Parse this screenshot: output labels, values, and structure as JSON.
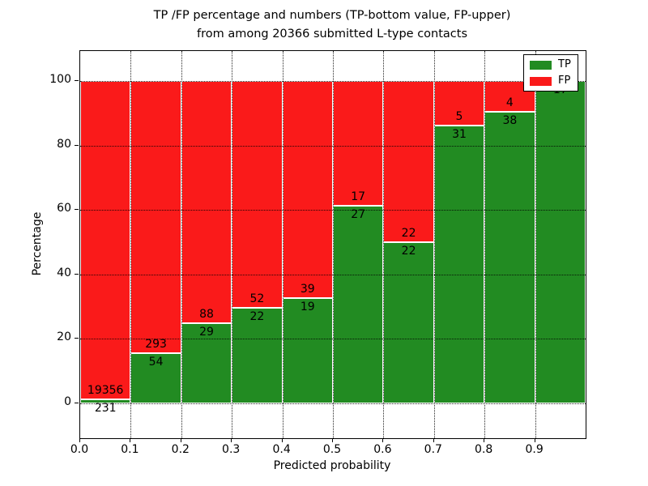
{
  "title": {
    "line1": "TP /FP percentage and numbers (TP-bottom value, FP-upper)",
    "line2": "from among 20366 submitted L-type contacts"
  },
  "axes": {
    "xlabel": "Predicted probability",
    "ylabel": "Percentage",
    "x_tick_labels": [
      "0.0",
      "0.1",
      "0.2",
      "0.3",
      "0.4",
      "0.5",
      "0.6",
      "0.7",
      "0.8",
      "0.9"
    ],
    "y_tick_labels": [
      "0",
      "20",
      "40",
      "60",
      "80",
      "100"
    ],
    "y_tick_values": [
      0,
      20,
      40,
      60,
      80,
      100
    ],
    "ylim": [
      -10.8,
      109.3
    ],
    "xlim": [
      0.0,
      1.0
    ],
    "grid": "dotted"
  },
  "legend": {
    "position": "upper-right",
    "items": [
      {
        "label": "TP",
        "color": "#228b22"
      },
      {
        "label": "FP",
        "color": "#fa1a1a"
      }
    ]
  },
  "chart_data": {
    "type": "bar",
    "stacked": true,
    "normalized_to": 100,
    "title": "TP /FP percentage and numbers (TP-bottom value, FP-upper) from among 20366 submitted L-type contacts",
    "xlabel": "Predicted probability",
    "ylabel": "Percentage",
    "categories": [
      "0.0-0.1",
      "0.1-0.2",
      "0.2-0.3",
      "0.3-0.4",
      "0.4-0.5",
      "0.5-0.6",
      "0.6-0.7",
      "0.7-0.8",
      "0.8-0.9",
      "0.9-1.0"
    ],
    "bin_width": 0.1,
    "series": [
      {
        "name": "TP",
        "color": "#228b22",
        "values": [
          231,
          54,
          29,
          22,
          19,
          27,
          22,
          31,
          38,
          17
        ]
      },
      {
        "name": "FP",
        "color": "#fa1a1a",
        "values": [
          19356,
          293,
          88,
          52,
          39,
          17,
          22,
          5,
          4,
          0
        ]
      }
    ],
    "tp_percent": [
      1.18,
      15.56,
      24.79,
      29.73,
      32.76,
      61.36,
      50.0,
      86.11,
      90.48,
      100.0
    ],
    "total_contacts": 20366,
    "bar_edge_color": "#ffffff",
    "legend_position": "upper-right",
    "grid": true
  }
}
